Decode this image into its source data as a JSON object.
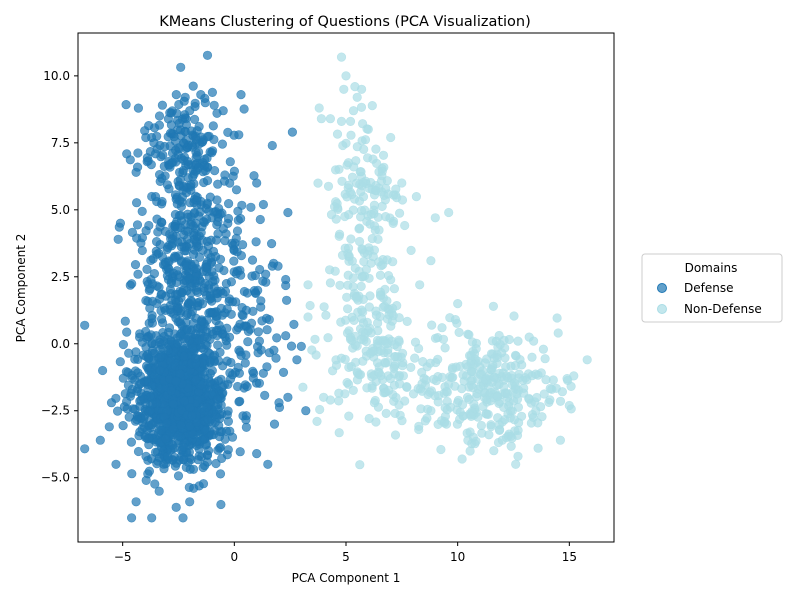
{
  "chart_data": {
    "type": "scatter",
    "title": "KMeans Clustering of Questions (PCA Visualization)",
    "xlabel": "PCA Component 1",
    "ylabel": "PCA Component 2",
    "xlim": [
      -7.0,
      17.0
    ],
    "ylim": [
      -7.4,
      11.6
    ],
    "x_ticks": [
      -5,
      0,
      5,
      10,
      15
    ],
    "y_ticks": [
      -5.0,
      -2.5,
      0.0,
      2.5,
      5.0,
      7.5,
      10.0
    ],
    "x_tick_labels": [
      "−5",
      "0",
      "5",
      "10",
      "15"
    ],
    "y_tick_labels": [
      "−5.0",
      "−2.5",
      "0.0",
      "2.5",
      "5.0",
      "7.5",
      "10.0"
    ],
    "grid": false,
    "legend": {
      "title": "Domains",
      "placement": "outside-right"
    },
    "series": [
      {
        "name": "Defense",
        "color": "#1f77b4",
        "clusters": [
          {
            "cx": -2.4,
            "cy": -2.0,
            "sx": 1.0,
            "sy": 1.25,
            "n": 1100
          },
          {
            "cx": -2.0,
            "cy": 2.8,
            "sx": 1.2,
            "sy": 2.4,
            "n": 500
          },
          {
            "cx": -2.4,
            "cy": 7.5,
            "sx": 0.9,
            "sy": 0.9,
            "n": 110
          },
          {
            "cx": 0.6,
            "cy": 0.8,
            "sx": 1.0,
            "sy": 2.2,
            "n": 90
          }
        ],
        "values": [
          [
            -5.9,
            -1.0
          ],
          [
            -6.0,
            -3.6
          ],
          [
            -5.6,
            -3.1
          ],
          [
            -5.5,
            -2.2
          ],
          [
            -5.3,
            -4.5
          ],
          [
            -5.1,
            4.5
          ],
          [
            -5.2,
            3.9
          ],
          [
            -4.6,
            -6.5
          ],
          [
            -4.4,
            -5.9
          ],
          [
            -3.7,
            -6.5
          ],
          [
            -2.3,
            -6.5
          ],
          [
            -2.0,
            -5.9
          ],
          [
            -0.6,
            -6.0
          ],
          [
            -4.4,
            6.4
          ],
          [
            -3.9,
            6.8
          ],
          [
            -3.6,
            7.5
          ],
          [
            -2.6,
            9.3
          ],
          [
            -2.2,
            9.2
          ],
          [
            -1.5,
            9.3
          ],
          [
            -1.3,
            9.0
          ],
          [
            0.3,
            9.3
          ],
          [
            0.2,
            7.8
          ],
          [
            1.7,
            7.4
          ],
          [
            2.6,
            7.9
          ],
          [
            -0.5,
            8.7
          ],
          [
            -0.9,
            8.9
          ],
          [
            3.2,
            -2.5
          ],
          [
            2.4,
            -2.0
          ],
          [
            2.8,
            -0.6
          ],
          [
            1.5,
            -4.5
          ],
          [
            1.0,
            -4.1
          ],
          [
            2.3,
            0.3
          ],
          [
            3.0,
            -0.1
          ],
          [
            1.7,
            2.9
          ],
          [
            2.3,
            2.4
          ],
          [
            2.4,
            4.9
          ],
          [
            1.3,
            5.2
          ],
          [
            1.0,
            6.0
          ],
          [
            1.8,
            -3.0
          ],
          [
            2.0,
            -2.2
          ]
        ]
      },
      {
        "name": "Non-Defense",
        "color": "#aadde6",
        "clusters": [
          {
            "cx": 5.8,
            "cy": 4.6,
            "sx": 0.9,
            "sy": 2.0,
            "n": 160
          },
          {
            "cx": 6.1,
            "cy": -0.3,
            "sx": 1.0,
            "sy": 1.3,
            "n": 170
          },
          {
            "cx": 11.8,
            "cy": -1.8,
            "sx": 1.4,
            "sy": 1.0,
            "n": 240
          },
          {
            "cx": 8.8,
            "cy": -1.2,
            "sx": 1.2,
            "sy": 0.9,
            "n": 60
          }
        ],
        "values": [
          [
            4.8,
            10.7
          ],
          [
            5.0,
            10.0
          ],
          [
            5.4,
            9.6
          ],
          [
            5.7,
            9.5
          ],
          [
            4.9,
            9.5
          ],
          [
            5.5,
            9.2
          ],
          [
            3.8,
            8.8
          ],
          [
            3.9,
            8.4
          ],
          [
            4.3,
            8.4
          ],
          [
            4.8,
            8.3
          ],
          [
            5.2,
            8.3
          ],
          [
            6.0,
            8.0
          ],
          [
            7.0,
            7.7
          ],
          [
            7.5,
            6.0
          ],
          [
            9.6,
            4.9
          ],
          [
            9.0,
            4.7
          ],
          [
            8.8,
            3.1
          ],
          [
            8.3,
            2.2
          ],
          [
            3.3,
            2.2
          ],
          [
            3.3,
            1.0
          ],
          [
            3.7,
            -2.9
          ],
          [
            4.3,
            -2.1
          ],
          [
            6.8,
            -2.6
          ],
          [
            7.2,
            -2.6
          ],
          [
            10.2,
            -4.3
          ],
          [
            12.6,
            -4.5
          ],
          [
            13.6,
            -3.9
          ],
          [
            14.6,
            -3.6
          ],
          [
            14.9,
            -1.3
          ],
          [
            15.2,
            -1.2
          ],
          [
            15.8,
            -0.6
          ],
          [
            14.5,
            0.4
          ],
          [
            13.4,
            0.1
          ],
          [
            12.7,
            0.1
          ],
          [
            10.0,
            1.5
          ],
          [
            11.6,
            1.4
          ],
          [
            9.3,
            0.6
          ],
          [
            9.9,
            0.9
          ],
          [
            12.7,
            -4.2
          ],
          [
            11.4,
            -3.4
          ],
          [
            13.5,
            -2.5
          ],
          [
            12.0,
            -3.6
          ],
          [
            8.8,
            -2.5
          ],
          [
            7.4,
            -1.5
          ],
          [
            9.5,
            -3.0
          ]
        ]
      }
    ]
  }
}
